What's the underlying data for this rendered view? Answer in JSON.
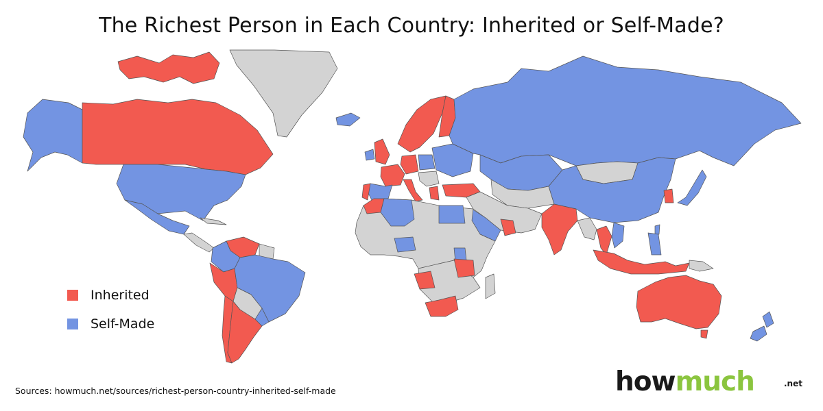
{
  "title": "The Richest Person in Each Country: Inherited or Self-Made?",
  "colors": {
    "inherited": "#f25a50",
    "self_made": "#7394e2",
    "no_data": "#d3d3d3"
  },
  "legend": [
    {
      "label": "Inherited",
      "category": "inherited"
    },
    {
      "label": "Self-Made",
      "category": "self_made"
    }
  ],
  "sources": "Sources: howmuch.net/sources/richest-person-country-inherited-self-made",
  "logo": {
    "how": "how",
    "much": "much",
    "tld": ".net"
  },
  "regions": [
    {
      "name": "Canada",
      "category": "inherited"
    },
    {
      "name": "Canadian Arctic islands",
      "category": "inherited"
    },
    {
      "name": "Greenland",
      "category": "no_data"
    },
    {
      "name": "Iceland",
      "category": "self_made"
    },
    {
      "name": "Alaska (USA)",
      "category": "self_made"
    },
    {
      "name": "United States",
      "category": "self_made"
    },
    {
      "name": "Mexico",
      "category": "self_made"
    },
    {
      "name": "Central America",
      "category": "no_data"
    },
    {
      "name": "Cuba",
      "category": "no_data"
    },
    {
      "name": "Venezuela",
      "category": "inherited"
    },
    {
      "name": "Colombia",
      "category": "self_made"
    },
    {
      "name": "Peru",
      "category": "inherited"
    },
    {
      "name": "Brazil",
      "category": "self_made"
    },
    {
      "name": "Chile",
      "category": "inherited"
    },
    {
      "name": "Argentina",
      "category": "inherited"
    },
    {
      "name": "Uruguay",
      "category": "self_made"
    },
    {
      "name": "Guianas",
      "category": "no_data"
    },
    {
      "name": "Bolivia / Paraguay",
      "category": "no_data"
    },
    {
      "name": "Norway / Sweden",
      "category": "inherited"
    },
    {
      "name": "Finland",
      "category": "inherited"
    },
    {
      "name": "United Kingdom",
      "category": "inherited"
    },
    {
      "name": "Ireland",
      "category": "self_made"
    },
    {
      "name": "France",
      "category": "inherited"
    },
    {
      "name": "Germany",
      "category": "inherited"
    },
    {
      "name": "Spain",
      "category": "self_made"
    },
    {
      "name": "Portugal",
      "category": "inherited"
    },
    {
      "name": "Italy",
      "category": "inherited"
    },
    {
      "name": "Poland",
      "category": "self_made"
    },
    {
      "name": "Eastern Europe",
      "category": "self_made"
    },
    {
      "name": "Balkans",
      "category": "no_data"
    },
    {
      "name": "Greece",
      "category": "inherited"
    },
    {
      "name": "Turkey",
      "category": "inherited"
    },
    {
      "name": "Russia",
      "category": "self_made"
    },
    {
      "name": "Kazakhstan",
      "category": "self_made"
    },
    {
      "name": "Central Asia",
      "category": "no_data"
    },
    {
      "name": "Mongolia",
      "category": "no_data"
    },
    {
      "name": "China",
      "category": "self_made"
    },
    {
      "name": "Korea",
      "category": "inherited"
    },
    {
      "name": "Japan",
      "category": "self_made"
    },
    {
      "name": "Taiwan",
      "category": "self_made"
    },
    {
      "name": "Middle East",
      "category": "no_data"
    },
    {
      "name": "Saudi Arabia",
      "category": "self_made"
    },
    {
      "name": "UAE / Oman",
      "category": "inherited"
    },
    {
      "name": "India",
      "category": "inherited"
    },
    {
      "name": "Southeast Asia mainland",
      "category": "no_data"
    },
    {
      "name": "Thailand",
      "category": "inherited"
    },
    {
      "name": "Vietnam",
      "category": "self_made"
    },
    {
      "name": "Philippines",
      "category": "self_made"
    },
    {
      "name": "Indonesia",
      "category": "inherited"
    },
    {
      "name": "Papua New Guinea",
      "category": "no_data"
    },
    {
      "name": "Australia",
      "category": "inherited"
    },
    {
      "name": "New Zealand",
      "category": "self_made"
    },
    {
      "name": "Morocco",
      "category": "inherited"
    },
    {
      "name": "Algeria",
      "category": "self_made"
    },
    {
      "name": "Egypt",
      "category": "self_made"
    },
    {
      "name": "North and Central Africa",
      "category": "no_data"
    },
    {
      "name": "Nigeria",
      "category": "self_made"
    },
    {
      "name": "Kenya",
      "category": "self_made"
    },
    {
      "name": "Angola",
      "category": "inherited"
    },
    {
      "name": "Zambia",
      "category": "inherited"
    },
    {
      "name": "Southern Africa",
      "category": "no_data"
    },
    {
      "name": "South Africa",
      "category": "inherited"
    },
    {
      "name": "Madagascar",
      "category": "no_data"
    }
  ]
}
